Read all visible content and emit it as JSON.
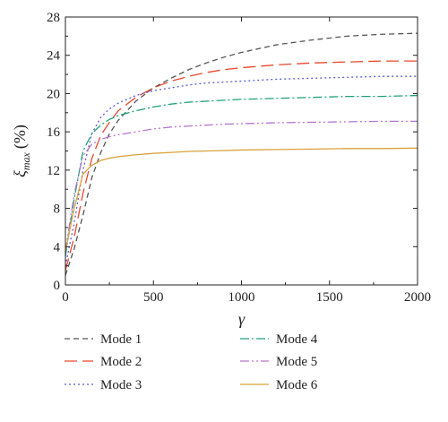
{
  "chart_data": {
    "type": "line",
    "xlabel": "γ",
    "ylabel": {
      "main": "ξ",
      "sub": "max",
      "unit": "(%)"
    },
    "xlim": [
      0,
      2000
    ],
    "ylim": [
      0,
      28
    ],
    "xticks": [
      0,
      500,
      1000,
      1500,
      2000
    ],
    "yticks": [
      0,
      4,
      8,
      12,
      16,
      20,
      24,
      28
    ],
    "grid": false,
    "legend_position": "bottom",
    "series": [
      {
        "name": "Mode 1",
        "color": "#555555",
        "dash": "6,4",
        "x": [
          0,
          50,
          100,
          150,
          200,
          250,
          300,
          400,
          500,
          600,
          700,
          800,
          900,
          1000,
          1200,
          1400,
          1600,
          1800,
          2000
        ],
        "y": [
          1.0,
          3.8,
          7.3,
          11.2,
          13.8,
          15.8,
          17.2,
          19.2,
          20.6,
          21.6,
          22.5,
          23.2,
          23.8,
          24.3,
          25.1,
          25.6,
          26.0,
          26.2,
          26.3
        ]
      },
      {
        "name": "Mode 2",
        "color": "#e8492e",
        "dash": "14,6",
        "x": [
          0,
          50,
          100,
          150,
          200,
          250,
          300,
          400,
          500,
          600,
          700,
          800,
          900,
          1000,
          1200,
          1400,
          1600,
          1800,
          2000
        ],
        "y": [
          1.5,
          5.0,
          9.6,
          13.2,
          15.6,
          17.0,
          18.2,
          19.6,
          20.6,
          21.3,
          21.8,
          22.2,
          22.5,
          22.7,
          23.0,
          23.2,
          23.3,
          23.4,
          23.4
        ]
      },
      {
        "name": "Mode 3",
        "color": "#5b5bd6",
        "dash": "2,3",
        "x": [
          0,
          50,
          100,
          150,
          200,
          250,
          300,
          400,
          500,
          600,
          700,
          800,
          900,
          1000,
          1200,
          1400,
          1600,
          1800,
          2000
        ],
        "y": [
          2.0,
          6.5,
          12.0,
          15.8,
          17.5,
          18.4,
          19.0,
          19.8,
          20.3,
          20.6,
          20.9,
          21.1,
          21.2,
          21.3,
          21.5,
          21.6,
          21.7,
          21.8,
          21.8
        ]
      },
      {
        "name": "Mode 4",
        "color": "#1fa27a",
        "dash": "10,3,2,3",
        "x": [
          0,
          50,
          100,
          150,
          200,
          250,
          300,
          400,
          500,
          600,
          700,
          800,
          900,
          1000,
          1200,
          1400,
          1600,
          1800,
          2000
        ],
        "y": [
          3.0,
          9.0,
          14.0,
          15.8,
          16.7,
          17.3,
          17.7,
          18.2,
          18.6,
          18.9,
          19.1,
          19.2,
          19.3,
          19.4,
          19.5,
          19.6,
          19.7,
          19.7,
          19.8
        ]
      },
      {
        "name": "Mode 5",
        "color": "#b476cf",
        "dash": "10,3,2,3,2,3",
        "x": [
          0,
          50,
          100,
          150,
          200,
          250,
          300,
          400,
          500,
          600,
          700,
          800,
          900,
          1000,
          1200,
          1400,
          1600,
          1800,
          2000
        ],
        "y": [
          3.5,
          9.5,
          13.5,
          14.7,
          15.2,
          15.5,
          15.7,
          16.0,
          16.3,
          16.5,
          16.6,
          16.7,
          16.8,
          16.85,
          16.95,
          17.0,
          17.05,
          17.1,
          17.1
        ]
      },
      {
        "name": "Mode 6",
        "color": "#d9a23b",
        "dash": "",
        "x": [
          0,
          50,
          100,
          150,
          200,
          250,
          300,
          400,
          500,
          600,
          700,
          800,
          900,
          1000,
          1200,
          1400,
          1600,
          1800,
          2000
        ],
        "y": [
          3.5,
          8.0,
          11.6,
          12.5,
          13.0,
          13.25,
          13.4,
          13.6,
          13.75,
          13.85,
          13.95,
          14.0,
          14.05,
          14.1,
          14.15,
          14.2,
          14.25,
          14.25,
          14.3
        ]
      }
    ]
  }
}
